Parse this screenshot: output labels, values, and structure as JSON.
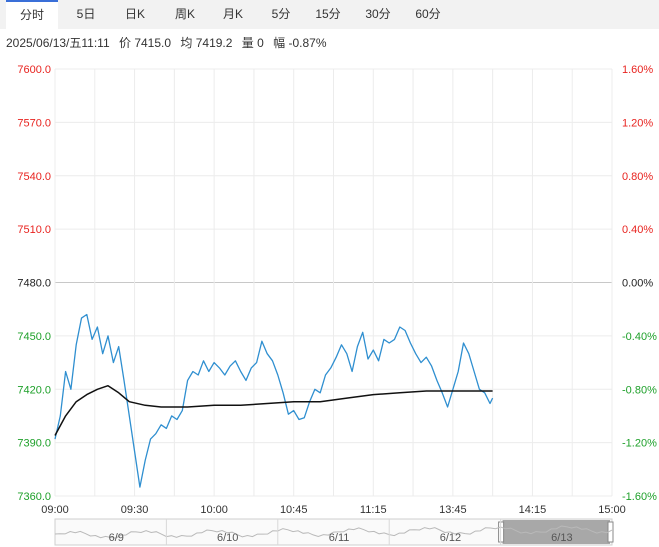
{
  "tabs": [
    {
      "label": "分时",
      "active": true
    },
    {
      "label": "5日",
      "active": false
    },
    {
      "label": "日K",
      "active": false
    },
    {
      "label": "周K",
      "active": false
    },
    {
      "label": "月K",
      "active": false
    },
    {
      "label": "5分",
      "active": false
    },
    {
      "label": "15分",
      "active": false
    },
    {
      "label": "30分",
      "active": false
    },
    {
      "label": "60分",
      "active": false
    }
  ],
  "info": {
    "datetime": "2025/06/13/五11:11",
    "price": "价 7415.0",
    "avg": "均 7419.2",
    "volume": "量 0",
    "change": "幅 -0.87%"
  },
  "colors": {
    "up": "#e8231f",
    "down": "#1ea02a",
    "flat": "#222222",
    "price_line": "#2f8fd0",
    "avg_line": "#111111"
  },
  "chart_data": {
    "type": "line",
    "ylim": [
      7360,
      7600
    ],
    "y_ticks": [
      "7600.0",
      "7570.0",
      "7540.0",
      "7510.0",
      "7480.0",
      "7450.0",
      "7420.0",
      "7390.0",
      "7360.0"
    ],
    "y_tick_values": [
      7600,
      7570,
      7540,
      7510,
      7480,
      7450,
      7420,
      7390,
      7360
    ],
    "pct_ticks": [
      "1.60%",
      "1.20%",
      "0.80%",
      "0.40%",
      "0.00%",
      "-0.40%",
      "-0.80%",
      "-1.20%",
      "-1.60%"
    ],
    "x_ticks": [
      "09:00",
      "09:30",
      "10:00",
      "10:45",
      "11:15",
      "13:45",
      "14:15",
      "15:00"
    ],
    "x_tick_index": [
      0,
      30,
      60,
      90,
      120,
      150,
      180,
      210
    ],
    "x_count": 210,
    "series": [
      {
        "role": "price",
        "points": [
          [
            0,
            7392
          ],
          [
            2,
            7405
          ],
          [
            4,
            7430
          ],
          [
            6,
            7420
          ],
          [
            8,
            7445
          ],
          [
            10,
            7460
          ],
          [
            12,
            7462
          ],
          [
            14,
            7448
          ],
          [
            16,
            7455
          ],
          [
            18,
            7440
          ],
          [
            20,
            7450
          ],
          [
            22,
            7435
          ],
          [
            24,
            7444
          ],
          [
            26,
            7425
          ],
          [
            28,
            7405
          ],
          [
            30,
            7385
          ],
          [
            32,
            7365
          ],
          [
            34,
            7380
          ],
          [
            36,
            7392
          ],
          [
            38,
            7395
          ],
          [
            40,
            7400
          ],
          [
            42,
            7398
          ],
          [
            44,
            7405
          ],
          [
            46,
            7403
          ],
          [
            48,
            7408
          ],
          [
            50,
            7425
          ],
          [
            52,
            7430
          ],
          [
            54,
            7428
          ],
          [
            56,
            7436
          ],
          [
            58,
            7430
          ],
          [
            60,
            7435
          ],
          [
            62,
            7432
          ],
          [
            64,
            7428
          ],
          [
            66,
            7433
          ],
          [
            68,
            7436
          ],
          [
            70,
            7430
          ],
          [
            72,
            7425
          ],
          [
            74,
            7432
          ],
          [
            76,
            7435
          ],
          [
            78,
            7447
          ],
          [
            80,
            7440
          ],
          [
            82,
            7436
          ],
          [
            84,
            7428
          ],
          [
            86,
            7418
          ],
          [
            88,
            7406
          ],
          [
            90,
            7408
          ],
          [
            92,
            7403
          ],
          [
            94,
            7404
          ],
          [
            96,
            7413
          ],
          [
            98,
            7420
          ],
          [
            100,
            7418
          ],
          [
            102,
            7428
          ],
          [
            104,
            7432
          ],
          [
            106,
            7438
          ],
          [
            108,
            7445
          ],
          [
            110,
            7440
          ],
          [
            112,
            7430
          ],
          [
            114,
            7444
          ],
          [
            116,
            7452
          ],
          [
            118,
            7437
          ],
          [
            120,
            7442
          ],
          [
            122,
            7436
          ],
          [
            124,
            7448
          ],
          [
            126,
            7446
          ],
          [
            128,
            7448
          ],
          [
            130,
            7455
          ],
          [
            132,
            7453
          ],
          [
            134,
            7446
          ],
          [
            136,
            7440
          ],
          [
            138,
            7435
          ],
          [
            140,
            7438
          ],
          [
            142,
            7433
          ],
          [
            144,
            7425
          ],
          [
            146,
            7418
          ],
          [
            148,
            7410
          ],
          [
            150,
            7420
          ],
          [
            152,
            7430
          ],
          [
            154,
            7446
          ],
          [
            156,
            7440
          ],
          [
            158,
            7430
          ],
          [
            160,
            7420
          ],
          [
            162,
            7418
          ],
          [
            164,
            7412
          ],
          [
            165,
            7415
          ]
        ]
      },
      {
        "role": "average",
        "points": [
          [
            0,
            7394
          ],
          [
            4,
            7405
          ],
          [
            8,
            7413
          ],
          [
            12,
            7417
          ],
          [
            16,
            7420
          ],
          [
            20,
            7422
          ],
          [
            24,
            7418
          ],
          [
            28,
            7413
          ],
          [
            34,
            7411
          ],
          [
            40,
            7410
          ],
          [
            50,
            7410
          ],
          [
            60,
            7411
          ],
          [
            70,
            7411
          ],
          [
            80,
            7412
          ],
          [
            90,
            7413
          ],
          [
            100,
            7413
          ],
          [
            110,
            7415
          ],
          [
            120,
            7417
          ],
          [
            130,
            7418
          ],
          [
            140,
            7419
          ],
          [
            150,
            7419
          ],
          [
            165,
            7419
          ]
        ]
      }
    ]
  },
  "mini_overview": {
    "day_labels": [
      "6/9",
      "6/10",
      "6/11",
      "6/12",
      "6/13"
    ],
    "selected_day": "6/13"
  }
}
